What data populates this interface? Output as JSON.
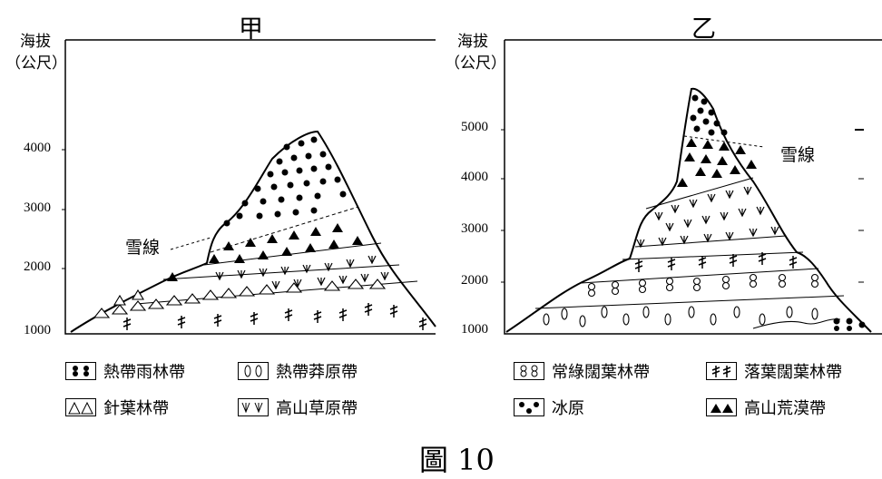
{
  "panels": {
    "jia": {
      "title": "甲",
      "y_label_1": "海拔",
      "y_label_2": "（公尺）",
      "ticks": [
        "4000",
        "3000",
        "2000",
        "1000"
      ],
      "snowline_label": "雪線"
    },
    "yi": {
      "title": "乙",
      "y_label_1": "海拔",
      "y_label_2": "（公尺）",
      "ticks": [
        "5000",
        "4000",
        "3000",
        "2000",
        "1000"
      ],
      "snowline_label": "雪線"
    }
  },
  "legend": {
    "left": [
      {
        "label": "熱帶雨林帶",
        "icon": "tropical-rainforest-icon"
      },
      {
        "label": "熱帶莽原帶",
        "icon": "tropical-savanna-icon"
      },
      {
        "label": "針葉林帶",
        "icon": "coniferous-forest-icon"
      },
      {
        "label": "高山草原帶",
        "icon": "alpine-meadow-icon"
      }
    ],
    "right": [
      {
        "label": "常綠闊葉林帶",
        "icon": "evergreen-broadleaf-icon"
      },
      {
        "label": "落葉闊葉林帶",
        "icon": "deciduous-broadleaf-icon"
      },
      {
        "label": "冰原",
        "icon": "ice-field-icon"
      },
      {
        "label": "高山荒漠帶",
        "icon": "alpine-desert-icon"
      }
    ]
  },
  "figure_caption": "圖 10"
}
